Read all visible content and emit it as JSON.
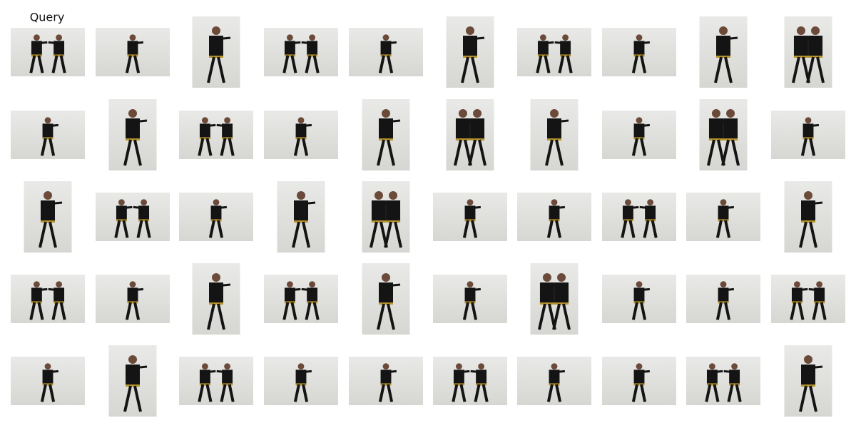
{
  "header": {
    "title": "Query"
  }
}
